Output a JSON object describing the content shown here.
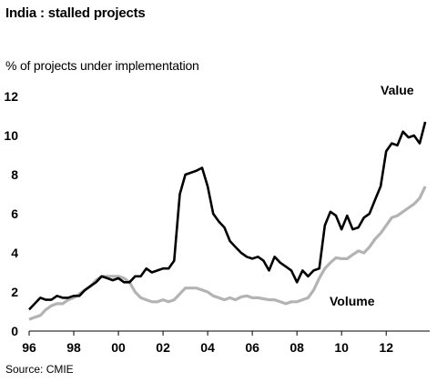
{
  "title": "India : stalled projects",
  "subtitle": "% of projects under implementation",
  "source": "Source: CMIE",
  "chart_data": {
    "type": "line",
    "title": "India : stalled projects",
    "ylabel": "% of projects under implementation",
    "xlabel": "",
    "ylim": [
      0,
      12
    ],
    "xlim": [
      1996.0,
      2013.95
    ],
    "yticks": [
      "0",
      "2",
      "4",
      "6",
      "8",
      "10",
      "12"
    ],
    "xticks": [
      {
        "label": "96",
        "x": 1996
      },
      {
        "label": "98",
        "x": 1998
      },
      {
        "label": "00",
        "x": 2000
      },
      {
        "label": "02",
        "x": 2002
      },
      {
        "label": "04",
        "x": 2004
      },
      {
        "label": "06",
        "x": 2006
      },
      {
        "label": "08",
        "x": 2008
      },
      {
        "label": "10",
        "x": 2010
      },
      {
        "label": "12",
        "x": 2012
      }
    ],
    "grid": false,
    "legend": "inline labels",
    "series": [
      {
        "name": "Value",
        "color": "#000000",
        "x": [
          1996.0,
          1996.25,
          1996.5,
          1996.75,
          1997.0,
          1997.25,
          1997.5,
          1997.75,
          1998.0,
          1998.25,
          1998.5,
          1998.75,
          1999.0,
          1999.25,
          1999.5,
          1999.75,
          2000.0,
          2000.25,
          2000.5,
          2000.75,
          2001.0,
          2001.25,
          2001.5,
          2001.75,
          2002.0,
          2002.25,
          2002.5,
          2002.75,
          2003.0,
          2003.25,
          2003.5,
          2003.75,
          2004.0,
          2004.25,
          2004.5,
          2004.75,
          2005.0,
          2005.25,
          2005.5,
          2005.75,
          2006.0,
          2006.25,
          2006.5,
          2006.75,
          2007.0,
          2007.25,
          2007.5,
          2007.75,
          2008.0,
          2008.25,
          2008.5,
          2008.75,
          2009.0,
          2009.25,
          2009.5,
          2009.75,
          2010.0,
          2010.25,
          2010.5,
          2010.75,
          2011.0,
          2011.25,
          2011.5,
          2011.75,
          2012.0,
          2012.25,
          2012.5,
          2012.75,
          2013.0,
          2013.25,
          2013.5,
          2013.75
        ],
        "values": [
          1.1,
          1.4,
          1.7,
          1.6,
          1.6,
          1.8,
          1.7,
          1.7,
          1.8,
          1.8,
          2.1,
          2.3,
          2.5,
          2.8,
          2.7,
          2.6,
          2.7,
          2.5,
          2.5,
          2.8,
          2.8,
          3.2,
          3.0,
          3.1,
          3.2,
          3.2,
          3.6,
          7.0,
          8.0,
          8.1,
          8.2,
          8.35,
          7.4,
          6.0,
          5.6,
          5.3,
          4.6,
          4.3,
          4.0,
          3.8,
          3.7,
          3.8,
          3.6,
          3.1,
          3.8,
          3.5,
          3.3,
          3.1,
          2.5,
          3.1,
          2.8,
          3.1,
          3.2,
          5.4,
          6.1,
          5.9,
          5.2,
          5.9,
          5.2,
          5.3,
          5.8,
          6.0,
          6.7,
          7.4,
          9.2,
          9.6,
          9.5,
          10.2,
          9.9,
          10.0,
          9.6,
          10.7
        ]
      },
      {
        "name": "Volume",
        "color": "#b3b3b3",
        "x": [
          1996.0,
          1996.25,
          1996.5,
          1996.75,
          1997.0,
          1997.25,
          1997.5,
          1997.75,
          1998.0,
          1998.25,
          1998.5,
          1998.75,
          1999.0,
          1999.25,
          1999.5,
          1999.75,
          2000.0,
          2000.25,
          2000.5,
          2000.75,
          2001.0,
          2001.25,
          2001.5,
          2001.75,
          2002.0,
          2002.25,
          2002.5,
          2002.75,
          2003.0,
          2003.25,
          2003.5,
          2003.75,
          2004.0,
          2004.25,
          2004.5,
          2004.75,
          2005.0,
          2005.25,
          2005.5,
          2005.75,
          2006.0,
          2006.25,
          2006.5,
          2006.75,
          2007.0,
          2007.25,
          2007.5,
          2007.75,
          2008.0,
          2008.25,
          2008.5,
          2008.75,
          2009.0,
          2009.25,
          2009.5,
          2009.75,
          2010.0,
          2010.25,
          2010.5,
          2010.75,
          2011.0,
          2011.25,
          2011.5,
          2011.75,
          2012.0,
          2012.25,
          2012.5,
          2012.75,
          2013.0,
          2013.25,
          2013.5,
          2013.75
        ],
        "values": [
          0.6,
          0.7,
          0.8,
          1.1,
          1.3,
          1.4,
          1.4,
          1.6,
          1.7,
          1.9,
          2.1,
          2.3,
          2.6,
          2.8,
          2.8,
          2.8,
          2.8,
          2.7,
          2.5,
          2.0,
          1.7,
          1.6,
          1.5,
          1.5,
          1.6,
          1.5,
          1.6,
          1.9,
          2.2,
          2.2,
          2.2,
          2.1,
          2.0,
          1.8,
          1.7,
          1.6,
          1.7,
          1.6,
          1.75,
          1.8,
          1.7,
          1.7,
          1.65,
          1.6,
          1.6,
          1.5,
          1.4,
          1.5,
          1.5,
          1.6,
          1.7,
          2.1,
          2.7,
          3.2,
          3.5,
          3.75,
          3.7,
          3.7,
          3.9,
          4.1,
          4.0,
          4.3,
          4.7,
          5.0,
          5.4,
          5.8,
          5.9,
          6.1,
          6.3,
          6.5,
          6.8,
          7.4
        ]
      }
    ]
  }
}
